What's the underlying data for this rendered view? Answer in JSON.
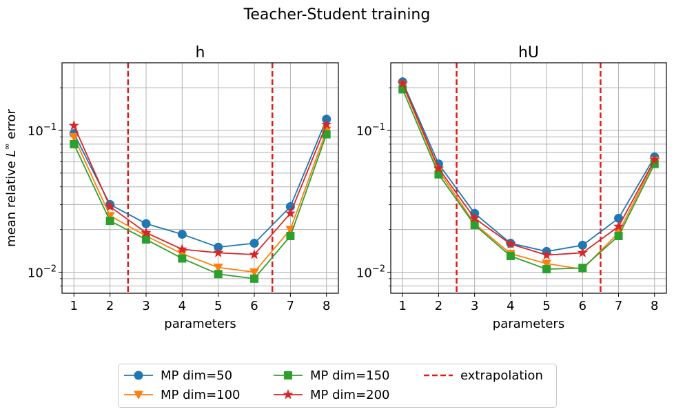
{
  "figure": {
    "suptitle": "Teacher-Student training",
    "ylabel_prefix": "mean relative ",
    "ylabel_math_L": "L",
    "ylabel_math_sup": "∞",
    "ylabel_suffix": " error"
  },
  "colors": {
    "MP dim=50": "#1f77b4",
    "MP dim=100": "#ff7f0e",
    "MP dim=150": "#2ca02c",
    "MP dim=200": "#d62728",
    "extrapolation": "#e31a1c",
    "grid": "#b0b0b0"
  },
  "legend": {
    "placement": "bottom-center",
    "columns": 3,
    "entries": [
      {
        "label": "MP dim=50",
        "marker": "circle"
      },
      {
        "label": "MP dim=100",
        "marker": "triangle-down"
      },
      {
        "label": "MP dim=150",
        "marker": "square"
      },
      {
        "label": "MP dim=200",
        "marker": "star"
      },
      {
        "label": "extrapolation",
        "marker": "dashed-line"
      }
    ]
  },
  "chart_data": [
    {
      "type": "line",
      "title": "h",
      "xlabel": "parameters",
      "ylabel": "mean relative L^∞ error",
      "yscale": "log",
      "ylim": [
        0.0071,
        0.3
      ],
      "xlim": [
        0.67,
        8.33
      ],
      "grid": "major and minor",
      "x": [
        1,
        2,
        3,
        4,
        5,
        6,
        7,
        8
      ],
      "x_tick_labels": [
        "1",
        "2",
        "3",
        "4",
        "5",
        "6",
        "7",
        "8"
      ],
      "y_tick_labels": [
        {
          "value": 0.1,
          "label": "10",
          "exp": "−1"
        },
        {
          "value": 0.01,
          "label": "10",
          "exp": "−2"
        }
      ],
      "extrapolation_x": [
        2.5,
        6.5
      ],
      "series": [
        {
          "name": "MP dim=50",
          "values": [
            0.095,
            0.03,
            0.022,
            0.0185,
            0.015,
            0.016,
            0.029,
            0.12
          ]
        },
        {
          "name": "MP dim=100",
          "values": [
            0.09,
            0.025,
            0.018,
            0.0135,
            0.0108,
            0.01,
            0.02,
            0.1
          ]
        },
        {
          "name": "MP dim=150",
          "values": [
            0.08,
            0.023,
            0.017,
            0.0125,
            0.0097,
            0.009,
            0.018,
            0.094
          ]
        },
        {
          "name": "MP dim=200",
          "values": [
            0.108,
            0.029,
            0.019,
            0.0145,
            0.0137,
            0.0133,
            0.026,
            0.11
          ]
        }
      ]
    },
    {
      "type": "line",
      "title": "hU",
      "xlabel": "parameters",
      "ylabel": "",
      "yscale": "log",
      "ylim": [
        0.0071,
        0.3
      ],
      "xlim": [
        0.67,
        8.33
      ],
      "grid": "major and minor",
      "x": [
        1,
        2,
        3,
        4,
        5,
        6,
        7,
        8
      ],
      "x_tick_labels": [
        "1",
        "2",
        "3",
        "4",
        "5",
        "6",
        "7",
        "8"
      ],
      "y_tick_labels": [
        {
          "value": 0.1,
          "label": "10",
          "exp": "−1"
        },
        {
          "value": 0.01,
          "label": "10",
          "exp": "−2"
        }
      ],
      "extrapolation_x": [
        2.5,
        6.5
      ],
      "series": [
        {
          "name": "MP dim=50",
          "values": [
            0.22,
            0.058,
            0.026,
            0.016,
            0.014,
            0.0155,
            0.024,
            0.065
          ]
        },
        {
          "name": "MP dim=100",
          "values": [
            0.21,
            0.052,
            0.022,
            0.0135,
            0.0115,
            0.0105,
            0.019,
            0.061
          ]
        },
        {
          "name": "MP dim=150",
          "values": [
            0.195,
            0.049,
            0.0215,
            0.013,
            0.0105,
            0.0107,
            0.018,
            0.058
          ]
        },
        {
          "name": "MP dim=200",
          "values": [
            0.215,
            0.054,
            0.024,
            0.0158,
            0.0132,
            0.0137,
            0.021,
            0.062
          ]
        }
      ]
    }
  ]
}
